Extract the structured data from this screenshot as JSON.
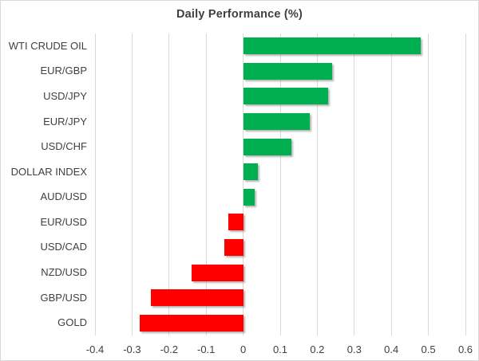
{
  "chart_data": {
    "type": "bar",
    "orientation": "horizontal",
    "title": "Daily Performance (%)",
    "categories": [
      "WTI CRUDE OIL",
      "EUR/GBP",
      "USD/JPY",
      "EUR/JPY",
      "USD/CHF",
      "DOLLAR INDEX",
      "AUD/USD",
      "EUR/USD",
      "USD/CAD",
      "NZD/USD",
      "GBP/USD",
      "GOLD"
    ],
    "values": [
      0.48,
      0.24,
      0.23,
      0.18,
      0.13,
      0.04,
      0.03,
      -0.04,
      -0.05,
      -0.14,
      -0.25,
      -0.28
    ],
    "xlabel": "",
    "ylabel": "",
    "xlim": [
      -0.4,
      0.6
    ],
    "x_ticks": [
      -0.4,
      -0.3,
      -0.2,
      -0.1,
      0,
      0.1,
      0.2,
      0.3,
      0.4,
      0.5,
      0.6
    ],
    "x_tick_labels": [
      "-0.4",
      "-0.3",
      "-0.2",
      "-0.1",
      "0",
      "0.1",
      "0.2",
      "0.3",
      "0.4",
      "0.5",
      "0.6"
    ],
    "grid": "vertical-gridlines-on",
    "legend": "none",
    "colors": {
      "positive_bar": "#00B050",
      "negative_bar": "#FF0000",
      "gridline": "#D9D9D9",
      "frame_border": "#D9D9D9",
      "text": "#404040",
      "background": "#FFFFFF"
    }
  }
}
